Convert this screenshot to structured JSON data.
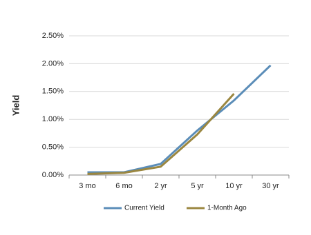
{
  "chart_data": {
    "type": "line",
    "y_label": "Yield",
    "categories": [
      "3 mo",
      "6 mo",
      "2 yr",
      "5 yr",
      "10 yr",
      "30 yr"
    ],
    "series": [
      {
        "name": "Current Yield",
        "color": "#5b8db8",
        "values": [
          0.05,
          0.05,
          0.2,
          0.8,
          1.34,
          1.97
        ]
      },
      {
        "name": "1-Month Ago",
        "color": "#9b8740",
        "values": [
          0.02,
          0.04,
          0.15,
          0.73,
          1.46,
          null
        ]
      }
    ],
    "ylim": [
      0,
      2.5
    ],
    "yticks": [
      {
        "value": 0,
        "label": "0.00%"
      },
      {
        "value": 0.5,
        "label": "0.50%"
      },
      {
        "value": 1,
        "label": "1.00%"
      },
      {
        "value": 1.5,
        "label": "1.50%"
      },
      {
        "value": 2,
        "label": "2.00%"
      },
      {
        "value": 2.5,
        "label": "2.50%"
      }
    ],
    "grid": true,
    "legend": "bottom"
  }
}
